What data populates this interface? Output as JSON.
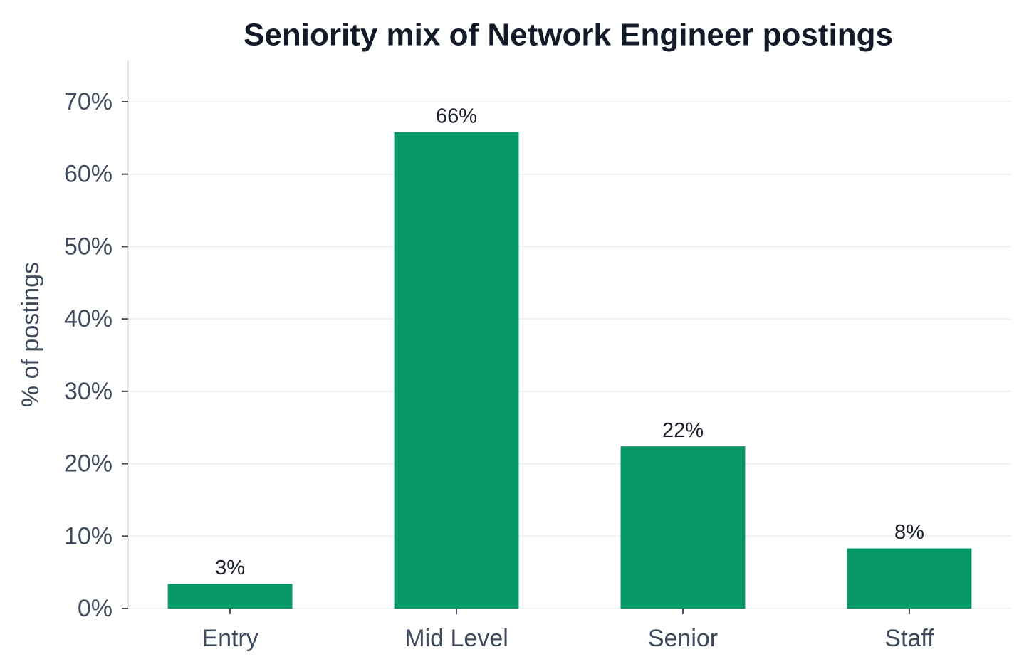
{
  "chart_data": {
    "type": "bar",
    "title": "Seniority mix of Network Engineer postings",
    "ylabel": "% of postings",
    "categories": [
      "Entry",
      "Mid Level",
      "Senior",
      "Staff"
    ],
    "values": [
      3.4,
      65.8,
      22.4,
      8.3
    ],
    "value_labels": [
      "3%",
      "66%",
      "22%",
      "8%"
    ],
    "color": "#069668",
    "ylim": [
      0,
      75.7
    ],
    "yticks": [
      {
        "value": 0,
        "label": "0%"
      },
      {
        "value": 10,
        "label": "10%"
      },
      {
        "value": 20,
        "label": "20%"
      },
      {
        "value": 30,
        "label": "30%"
      },
      {
        "value": 40,
        "label": "40%"
      },
      {
        "value": 50,
        "label": "50%"
      },
      {
        "value": 60,
        "label": "60%"
      },
      {
        "value": 70,
        "label": "70%"
      }
    ],
    "grid": true
  }
}
